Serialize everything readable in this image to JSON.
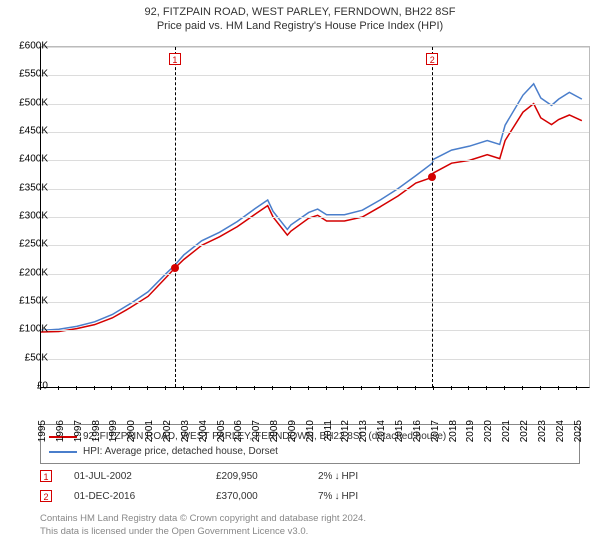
{
  "title_line1": "92, FITZPAIN ROAD, WEST PARLEY, FERNDOWN, BH22 8SF",
  "title_line2": "Price paid vs. HM Land Registry's House Price Index (HPI)",
  "chart": {
    "type": "line",
    "background_color": "#ffffff",
    "grid_color": "#dcdcdc",
    "axis_color": "#000000",
    "y": {
      "min": 0,
      "max": 600000,
      "step": 50000,
      "labels": [
        "£0",
        "£50K",
        "£100K",
        "£150K",
        "£200K",
        "£250K",
        "£300K",
        "£350K",
        "£400K",
        "£450K",
        "£500K",
        "£550K",
        "£600K"
      ]
    },
    "x": {
      "min": 1995,
      "max": 2025.7,
      "labels": [
        "1995",
        "1996",
        "1997",
        "1998",
        "1999",
        "2000",
        "2001",
        "2002",
        "2003",
        "2004",
        "2005",
        "2006",
        "2007",
        "2008",
        "2009",
        "2010",
        "2011",
        "2012",
        "2013",
        "2014",
        "2015",
        "2016",
        "2017",
        "2018",
        "2019",
        "2020",
        "2021",
        "2022",
        "2023",
        "2024",
        "2025"
      ]
    },
    "series": [
      {
        "name": "property",
        "color": "#d40000",
        "width": 1.5,
        "points": [
          [
            1995,
            97000
          ],
          [
            1996,
            98000
          ],
          [
            1997,
            103000
          ],
          [
            1998,
            110000
          ],
          [
            1999,
            122000
          ],
          [
            2000,
            140000
          ],
          [
            2001,
            160000
          ],
          [
            2002,
            193000
          ],
          [
            2002.5,
            209950
          ],
          [
            2003,
            225000
          ],
          [
            2004,
            250000
          ],
          [
            2005,
            265000
          ],
          [
            2006,
            283000
          ],
          [
            2007,
            305000
          ],
          [
            2007.7,
            320000
          ],
          [
            2008,
            300000
          ],
          [
            2008.8,
            268000
          ],
          [
            2009,
            275000
          ],
          [
            2010,
            298000
          ],
          [
            2010.5,
            303000
          ],
          [
            2011,
            293000
          ],
          [
            2012,
            293000
          ],
          [
            2013,
            300000
          ],
          [
            2014,
            318000
          ],
          [
            2015,
            337000
          ],
          [
            2016,
            360000
          ],
          [
            2016.92,
            370000
          ],
          [
            2017,
            378000
          ],
          [
            2018,
            395000
          ],
          [
            2019,
            400000
          ],
          [
            2020,
            410000
          ],
          [
            2020.7,
            403000
          ],
          [
            2021,
            435000
          ],
          [
            2022,
            485000
          ],
          [
            2022.6,
            500000
          ],
          [
            2023,
            475000
          ],
          [
            2023.6,
            463000
          ],
          [
            2024,
            472000
          ],
          [
            2024.6,
            480000
          ],
          [
            2025.3,
            470000
          ]
        ]
      },
      {
        "name": "hpi",
        "color": "#4a7ecb",
        "width": 1.5,
        "points": [
          [
            1995,
            100000
          ],
          [
            1996,
            102000
          ],
          [
            1997,
            107000
          ],
          [
            1998,
            115000
          ],
          [
            1999,
            128000
          ],
          [
            2000,
            147000
          ],
          [
            2001,
            168000
          ],
          [
            2002,
            200000
          ],
          [
            2002.5,
            215000
          ],
          [
            2003,
            233000
          ],
          [
            2004,
            258000
          ],
          [
            2005,
            273000
          ],
          [
            2006,
            292000
          ],
          [
            2007,
            315000
          ],
          [
            2007.7,
            330000
          ],
          [
            2008,
            310000
          ],
          [
            2008.8,
            278000
          ],
          [
            2009,
            286000
          ],
          [
            2010,
            308000
          ],
          [
            2010.5,
            314000
          ],
          [
            2011,
            304000
          ],
          [
            2012,
            304000
          ],
          [
            2013,
            312000
          ],
          [
            2014,
            330000
          ],
          [
            2015,
            350000
          ],
          [
            2016,
            373000
          ],
          [
            2016.92,
            395000
          ],
          [
            2017,
            402000
          ],
          [
            2018,
            418000
          ],
          [
            2019,
            425000
          ],
          [
            2020,
            435000
          ],
          [
            2020.7,
            428000
          ],
          [
            2021,
            462000
          ],
          [
            2022,
            515000
          ],
          [
            2022.6,
            535000
          ],
          [
            2023,
            510000
          ],
          [
            2023.6,
            497000
          ],
          [
            2024,
            508000
          ],
          [
            2024.6,
            520000
          ],
          [
            2025.3,
            508000
          ]
        ]
      }
    ],
    "markers": [
      {
        "n": "1",
        "year": 2002.5,
        "value": 209950,
        "color": "#d40000"
      },
      {
        "n": "2",
        "year": 2016.92,
        "value": 370000,
        "color": "#d40000"
      }
    ]
  },
  "legend": [
    {
      "color": "#d40000",
      "label": "92, FITZPAIN ROAD, WEST PARLEY, FERNDOWN, BH22 8SF (detached house)"
    },
    {
      "color": "#4a7ecb",
      "label": "HPI: Average price, detached house, Dorset"
    }
  ],
  "sales": [
    {
      "n": "1",
      "color": "#d40000",
      "date": "01-JUL-2002",
      "price": "£209,950",
      "diff": "2%",
      "diff_suffix": "HPI"
    },
    {
      "n": "2",
      "color": "#d40000",
      "date": "01-DEC-2016",
      "price": "£370,000",
      "diff": "7%",
      "diff_suffix": "HPI"
    }
  ],
  "footer_line1": "Contains HM Land Registry data © Crown copyright and database right 2024.",
  "footer_line2": "This data is licensed under the Open Government Licence v3.0."
}
